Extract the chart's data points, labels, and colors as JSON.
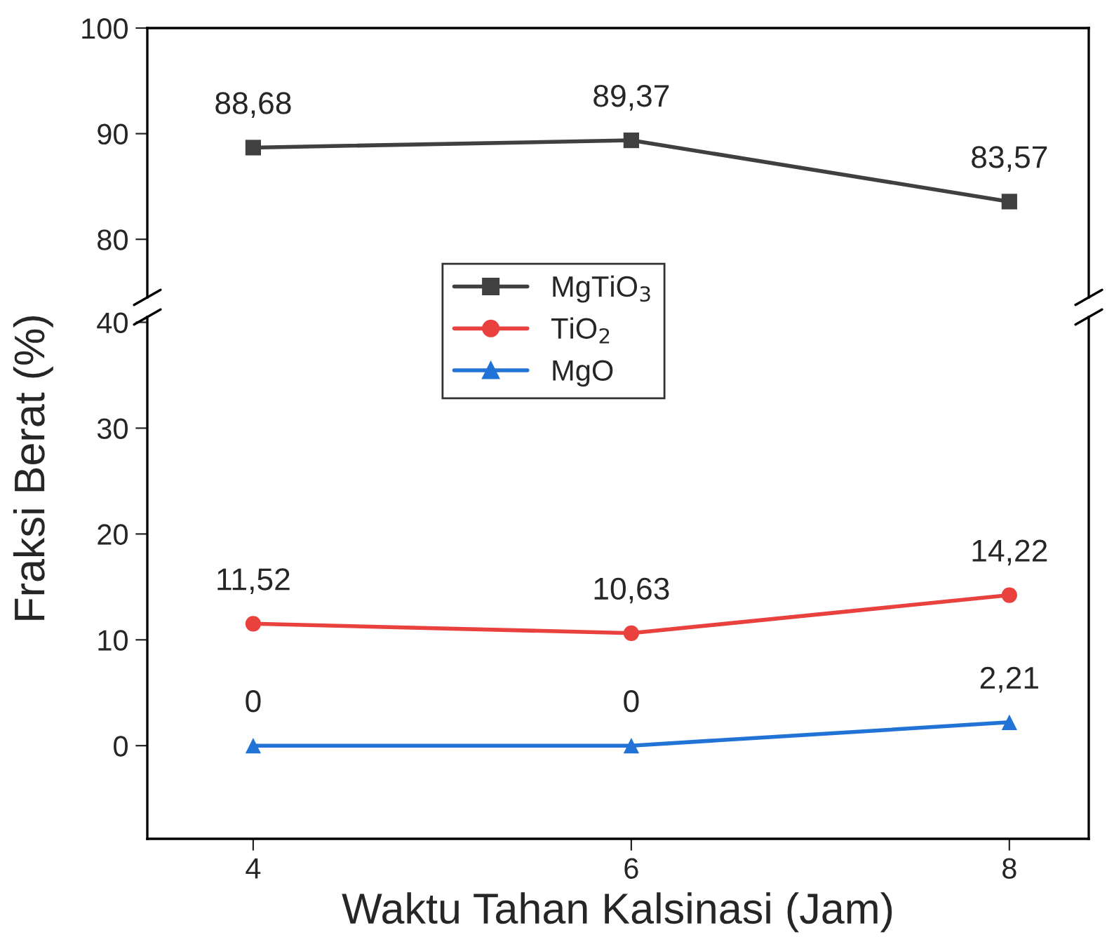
{
  "chart_data": [
    {
      "type": "line",
      "x": [
        4,
        6,
        8
      ],
      "xlim": [
        3.44,
        8.42
      ],
      "xticks": [
        4,
        6,
        8
      ],
      "ylim": [
        74.5,
        100
      ],
      "yticks": [
        80,
        90,
        100
      ],
      "tick_labels": "y",
      "legend": "bottom",
      "grid": false,
      "line_style": "solid",
      "series": [
        {
          "name": "MgTiO$_{3}$",
          "color": "#404040",
          "marker": "square",
          "values": [
            88.68,
            89.37,
            83.57
          ],
          "value_labels": [
            "88,68",
            "89,37",
            "83,57"
          ]
        }
      ]
    },
    {
      "type": "line",
      "x": [
        4,
        6,
        8
      ],
      "xlim": [
        3.44,
        8.42
      ],
      "xticks": [
        4,
        6,
        8
      ],
      "ylim": [
        -8.8,
        40.5
      ],
      "yticks": [
        0,
        10,
        20,
        30,
        40
      ],
      "legend": "top",
      "grid": false,
      "line_style": "solid",
      "xlabel": "Waktu Tahan Kalsinasi (Jam)",
      "ylabel": "Fraksi Berat (%)",
      "series": [
        {
          "name": "TiO$_{2}$",
          "color": "#e8413e",
          "marker": "circle",
          "values": [
            11.52,
            10.63,
            14.22
          ],
          "value_labels": [
            "11,52",
            "10,63",
            "14,22"
          ]
        },
        {
          "name": "MgO",
          "color": "#2173d6",
          "marker": "triangle",
          "values": [
            0,
            0,
            2.21
          ],
          "value_labels": [
            "0",
            "0",
            "2,21"
          ]
        }
      ]
    }
  ]
}
